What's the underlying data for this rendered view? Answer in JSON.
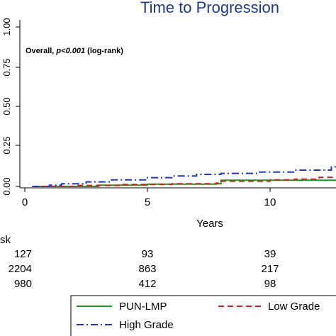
{
  "chart_data": {
    "type": "line",
    "title": "Time to Progression",
    "xlabel": "Years",
    "ylabel": "",
    "xlim": [
      0,
      13
    ],
    "ylim": [
      0,
      1
    ],
    "x_ticks": [
      0,
      5,
      10
    ],
    "y_ticks": [
      0.0,
      0.25,
      0.5,
      0.75,
      1.0
    ],
    "y_tick_labels": [
      "0.00",
      "0.25",
      "0.50",
      "0.75",
      "1.00"
    ],
    "grid": false,
    "annotation": {
      "prefix": "Overall, ",
      "p_text": "p<0.001",
      "suffix": " (log-rank)"
    },
    "series": [
      {
        "name": "PUN-LMP",
        "color": "#1a9a1a",
        "dash": "solid",
        "points": [
          [
            0.3,
            0.0
          ],
          [
            1.5,
            0.0
          ],
          [
            3.0,
            0.008
          ],
          [
            5.0,
            0.014
          ],
          [
            7.8,
            0.016
          ],
          [
            8.0,
            0.038
          ],
          [
            10.5,
            0.038
          ],
          [
            13.0,
            0.038
          ]
        ]
      },
      {
        "name": "Low Grade",
        "color": "#d42020",
        "dash": "dashed",
        "points": [
          [
            0.3,
            0.0
          ],
          [
            1.0,
            0.0
          ],
          [
            2.0,
            0.006
          ],
          [
            4.0,
            0.012
          ],
          [
            6.0,
            0.016
          ],
          [
            7.8,
            0.02
          ],
          [
            8.0,
            0.032
          ],
          [
            10.0,
            0.04
          ],
          [
            11.0,
            0.045
          ],
          [
            12.0,
            0.056
          ],
          [
            13.0,
            0.058
          ]
        ]
      },
      {
        "name": "High Grade",
        "color": "#2233cc",
        "dash": "dashdot",
        "points": [
          [
            0.3,
            0.0
          ],
          [
            1.0,
            0.008
          ],
          [
            1.5,
            0.016
          ],
          [
            2.5,
            0.028
          ],
          [
            3.5,
            0.04
          ],
          [
            5.0,
            0.054
          ],
          [
            6.0,
            0.064
          ],
          [
            7.0,
            0.074
          ],
          [
            8.0,
            0.08
          ],
          [
            9.5,
            0.088
          ],
          [
            11.0,
            0.1
          ],
          [
            12.5,
            0.12
          ],
          [
            13.0,
            0.126
          ]
        ]
      }
    ],
    "risk_table": {
      "header": "sk",
      "rows": [
        {
          "values": [
            "127",
            "93",
            "39"
          ]
        },
        {
          "values": [
            "2204",
            "863",
            "217"
          ]
        },
        {
          "values": [
            "980",
            "412",
            "98"
          ]
        }
      ]
    },
    "legend": {
      "placement": "bottom",
      "entries": [
        "PUN-LMP",
        "Low Grade",
        "High Grade"
      ]
    }
  }
}
